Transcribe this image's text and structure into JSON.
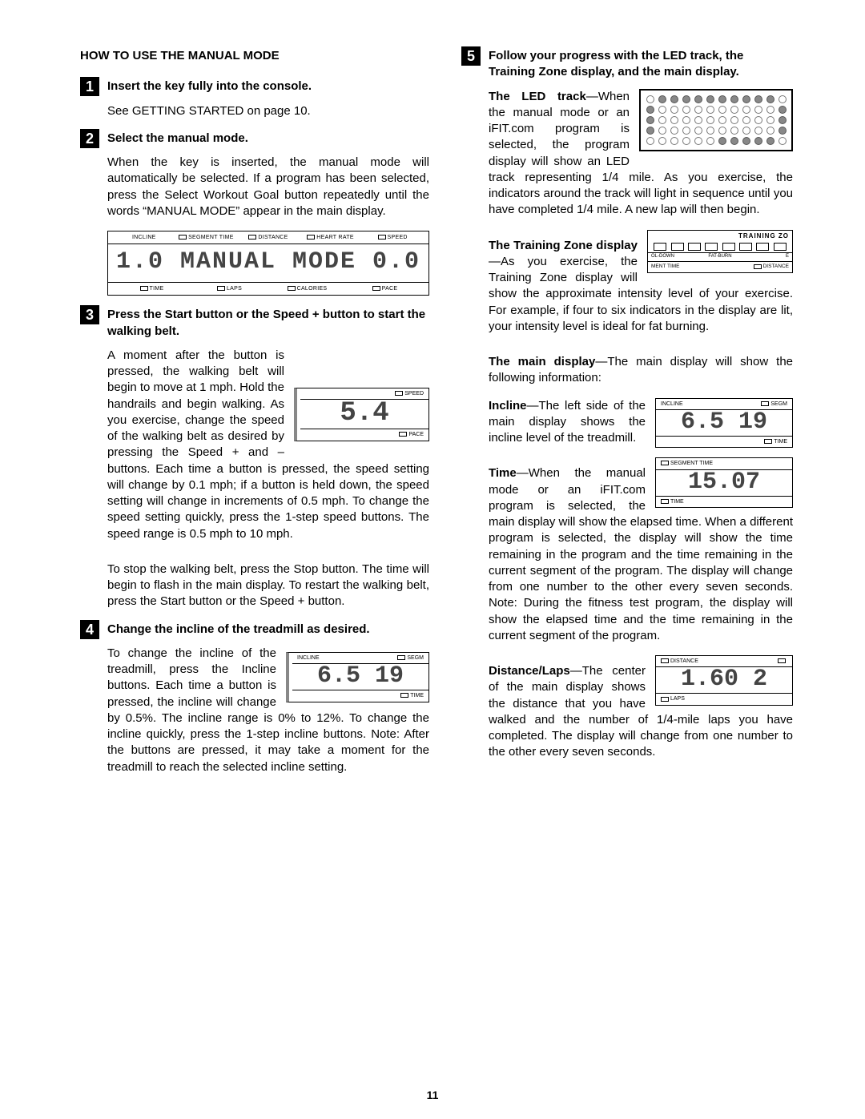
{
  "page_number": "11",
  "title": "HOW TO USE THE MANUAL MODE",
  "steps": {
    "s1": {
      "num": "1",
      "head": "Insert the key fully into the console.",
      "p1": "See GETTING STARTED on page 10."
    },
    "s2": {
      "num": "2",
      "head": "Select the manual mode.",
      "p1": "When the key is inserted, the manual mode will automatically be selected. If a program has been selected, press the Select Workout Goal button repeatedly until the words “MANUAL MODE” appear in the main display."
    },
    "s3": {
      "num": "3",
      "head": "Press the Start button or the Speed + button to start the walking belt.",
      "p1": "A moment after the button is pressed, the walking belt will begin to move at 1 mph. Hold the handrails and begin walking. As you exercise, change the speed of the walking belt as desired by pressing the Speed + and – buttons. Each time a button is pressed, the speed setting will change by 0.1 mph; if a button is held down, the speed setting will change in increments of 0.5 mph. To change the speed setting quickly, press the 1-step speed buttons. The speed range is 0.5 mph to 10 mph.",
      "p2": "To stop the walking belt, press the Stop button. The time will begin to flash in the main display. To restart the walking belt, press the Start button or the Speed + button."
    },
    "s4": {
      "num": "4",
      "head": "Change the incline of the treadmill as desired.",
      "p1": "To change the incline of the treadmill, press the Incline buttons. Each time a button is pressed, the incline will change by 0.5%. The incline range is 0% to 12%. To change the incline quickly, press the 1-step incline buttons. Note: After the buttons are pressed, it may take a moment for the treadmill to reach the selected incline setting."
    },
    "s5": {
      "num": "5",
      "head": "Follow your progress with the LED track, the Training Zone display, and the main display.",
      "led_label": "The LED track",
      "led_text": "—When the manual mode or an iFIT.com program is selected, the program display will show an LED track representing 1/4 mile. As you exercise, the indicators around the track will light in sequence until you have completed 1/4 mile. A new lap will then begin.",
      "tz_label": "The Training Zone display",
      "tz_text": "—As you exercise, the Training Zone display will show the approximate intensity level of your exercise. For example, if four to six indicators in the display are lit, your intensity level is ideal for fat burning.",
      "main_label": "The main display",
      "main_text": "—The main display will show the following information:",
      "incl_label": "Incline",
      "incl_text": "—The left side of the main display shows the incline level of the treadmill.",
      "time_label": "Time",
      "time_text": "—When the manual mode or an iFIT.com program is selected, the main display will show the elapsed time. When a different program is selected, the display will show the time remaining in the program and the time remaining in the current segment of the program. The display will change from one number to the other every seven seconds. Note: During the fitness test program, the display will show the elapsed time and the time remaining in the current segment of the program.",
      "dist_label": "Distance/Laps",
      "dist_text": "—The center of the main display shows the distance that you have walked and the number of 1/4-mile laps you have completed. The display will change from one number to the other every seven seconds."
    }
  },
  "lcd_full": {
    "top": [
      "INCLINE",
      "SEGMENT TIME",
      "DISTANCE",
      "HEART RATE",
      "SPEED"
    ],
    "main_left": "1.0 MANUAL",
    "main_mid": "MODE",
    "main_right": "0.0",
    "bot": [
      "TIME",
      "LAPS",
      "CALORIES",
      "PACE"
    ]
  },
  "lcd_speed": {
    "top_l": "SPEED",
    "value": "5.4",
    "bot_l": "PACE"
  },
  "lcd_incline": {
    "top_l": "INCLINE",
    "top_r": "SEGM",
    "value": "6.5  19",
    "bot_r": "TIME"
  },
  "lcd_incline2": {
    "top_l": "INCLINE",
    "top_r": "SEGM",
    "value": "6.5  19",
    "bot_r": "TIME"
  },
  "lcd_time": {
    "top_l": "SEGMENT TIME",
    "value": "15.07",
    "bot_l": "TIME"
  },
  "lcd_dist": {
    "top_l": "DISTANCE",
    "value": "1.60  2",
    "bot_l": "LAPS"
  },
  "led_track": {
    "rows": [
      [
        0,
        1,
        1,
        1,
        1,
        1,
        1,
        1,
        1,
        1,
        1,
        0
      ],
      [
        1,
        0,
        0,
        0,
        0,
        0,
        0,
        0,
        0,
        0,
        0,
        1
      ],
      [
        1,
        0,
        0,
        0,
        0,
        0,
        0,
        0,
        0,
        0,
        0,
        1
      ],
      [
        1,
        0,
        0,
        0,
        0,
        0,
        0,
        0,
        0,
        0,
        0,
        1
      ],
      [
        0,
        0,
        0,
        0,
        0,
        0,
        1,
        1,
        1,
        1,
        1,
        0
      ]
    ]
  },
  "tz": {
    "title": "TRAINING ZO",
    "row1": [
      "OL-DOWN",
      "FAT-BURN",
      "E"
    ],
    "row2": [
      "MENT TIME",
      "DISTANCE"
    ]
  }
}
